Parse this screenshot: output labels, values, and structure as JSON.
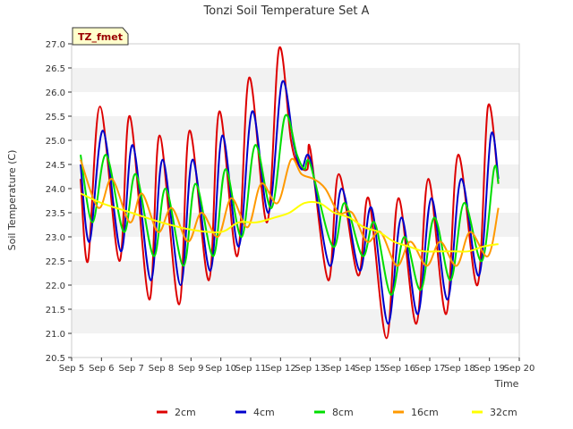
{
  "chart_data": {
    "type": "line",
    "title": "Tonzi Soil Temperature Set A",
    "xlabel": "Time",
    "ylabel": "Soil Temperature (C)",
    "badge": "TZ_fmet",
    "xlim": [
      5,
      20
    ],
    "ylim": [
      20.5,
      27.0
    ],
    "xticks": [
      5,
      6,
      7,
      8,
      9,
      10,
      11,
      12,
      13,
      14,
      15,
      16,
      17,
      18,
      19,
      20
    ],
    "xtick_labels": [
      "Sep 5",
      "Sep 6",
      "Sep 7",
      "Sep 8",
      "Sep 9",
      "Sep 10",
      "Sep 11",
      "Sep 12",
      "Sep 13",
      "Sep 14",
      "Sep 15",
      "Sep 16",
      "Sep 17",
      "Sep 18",
      "Sep 19",
      "Sep 20"
    ],
    "yticks": [
      20.5,
      21.0,
      21.5,
      22.0,
      22.5,
      23.0,
      23.5,
      24.0,
      24.5,
      25.0,
      25.5,
      26.0,
      26.5,
      27.0
    ],
    "ytick_labels": [
      "20.5",
      "21.0",
      "21.5",
      "22.0",
      "22.5",
      "23.0",
      "23.5",
      "24.0",
      "24.5",
      "25.0",
      "25.5",
      "26.0",
      "26.5",
      "27.0"
    ],
    "grid": "horizontal bands",
    "legend_position": "bottom",
    "series": [
      {
        "name": "2cm",
        "color": "#dd0000",
        "points": [
          [
            5.3,
            24.2
          ],
          [
            5.55,
            22.5
          ],
          [
            5.95,
            25.7
          ],
          [
            6.6,
            22.5
          ],
          [
            6.95,
            25.5
          ],
          [
            7.6,
            21.7
          ],
          [
            7.95,
            25.1
          ],
          [
            8.6,
            21.6
          ],
          [
            8.95,
            25.2
          ],
          [
            9.6,
            22.1
          ],
          [
            9.95,
            25.6
          ],
          [
            10.55,
            22.6
          ],
          [
            10.95,
            26.3
          ],
          [
            11.55,
            23.3
          ],
          [
            11.95,
            26.9
          ],
          [
            12.35,
            25.0
          ],
          [
            12.6,
            24.5
          ],
          [
            12.9,
            24.4
          ],
          [
            13.0,
            24.8
          ],
          [
            13.6,
            22.1
          ],
          [
            13.95,
            24.3
          ],
          [
            14.6,
            22.2
          ],
          [
            14.95,
            23.8
          ],
          [
            15.55,
            20.9
          ],
          [
            15.95,
            23.8
          ],
          [
            16.55,
            21.2
          ],
          [
            16.95,
            24.2
          ],
          [
            17.55,
            21.4
          ],
          [
            17.95,
            24.7
          ],
          [
            18.6,
            22.0
          ],
          [
            18.95,
            25.7
          ],
          [
            19.3,
            24.1
          ]
        ]
      },
      {
        "name": "4cm",
        "color": "#0000cc",
        "points": [
          [
            5.3,
            24.5
          ],
          [
            5.6,
            22.9
          ],
          [
            6.05,
            25.2
          ],
          [
            6.65,
            22.7
          ],
          [
            7.05,
            24.9
          ],
          [
            7.65,
            22.1
          ],
          [
            8.05,
            24.6
          ],
          [
            8.65,
            22.0
          ],
          [
            9.05,
            24.6
          ],
          [
            9.65,
            22.3
          ],
          [
            10.05,
            25.1
          ],
          [
            10.6,
            22.8
          ],
          [
            11.05,
            25.6
          ],
          [
            11.6,
            23.5
          ],
          [
            12.05,
            26.2
          ],
          [
            12.45,
            24.9
          ],
          [
            12.7,
            24.4
          ],
          [
            13.0,
            24.6
          ],
          [
            13.65,
            22.4
          ],
          [
            14.05,
            24.0
          ],
          [
            14.65,
            22.3
          ],
          [
            15.05,
            23.6
          ],
          [
            15.6,
            21.2
          ],
          [
            16.05,
            23.4
          ],
          [
            16.6,
            21.4
          ],
          [
            17.05,
            23.8
          ],
          [
            17.6,
            21.7
          ],
          [
            18.05,
            24.2
          ],
          [
            18.65,
            22.2
          ],
          [
            19.05,
            25.1
          ],
          [
            19.3,
            24.2
          ]
        ]
      },
      {
        "name": "8cm",
        "color": "#00dd00",
        "points": [
          [
            5.3,
            24.7
          ],
          [
            5.7,
            23.3
          ],
          [
            6.15,
            24.7
          ],
          [
            6.75,
            23.1
          ],
          [
            7.15,
            24.3
          ],
          [
            7.75,
            22.6
          ],
          [
            8.15,
            24.0
          ],
          [
            8.75,
            22.4
          ],
          [
            9.15,
            24.1
          ],
          [
            9.75,
            22.6
          ],
          [
            10.15,
            24.4
          ],
          [
            10.7,
            23.0
          ],
          [
            11.15,
            24.9
          ],
          [
            11.7,
            23.6
          ],
          [
            12.15,
            25.5
          ],
          [
            12.55,
            24.7
          ],
          [
            12.8,
            24.4
          ],
          [
            13.0,
            24.5
          ],
          [
            13.75,
            22.8
          ],
          [
            14.15,
            23.7
          ],
          [
            14.75,
            22.6
          ],
          [
            15.15,
            23.3
          ],
          [
            15.7,
            21.8
          ],
          [
            16.15,
            23.0
          ],
          [
            16.7,
            21.9
          ],
          [
            17.15,
            23.4
          ],
          [
            17.7,
            22.1
          ],
          [
            18.15,
            23.7
          ],
          [
            18.75,
            22.5
          ],
          [
            19.15,
            24.4
          ],
          [
            19.3,
            24.1
          ]
        ]
      },
      {
        "name": "16cm",
        "color": "#ff9900",
        "points": [
          [
            5.3,
            24.6
          ],
          [
            5.9,
            23.6
          ],
          [
            6.35,
            24.2
          ],
          [
            6.95,
            23.3
          ],
          [
            7.35,
            23.9
          ],
          [
            7.9,
            23.1
          ],
          [
            8.35,
            23.6
          ],
          [
            8.9,
            22.9
          ],
          [
            9.35,
            23.5
          ],
          [
            9.9,
            23.0
          ],
          [
            10.35,
            23.8
          ],
          [
            10.9,
            23.2
          ],
          [
            11.35,
            24.1
          ],
          [
            11.9,
            23.7
          ],
          [
            12.35,
            24.6
          ],
          [
            12.7,
            24.3
          ],
          [
            13.1,
            24.2
          ],
          [
            13.5,
            24.0
          ],
          [
            13.95,
            23.5
          ],
          [
            14.4,
            23.5
          ],
          [
            14.9,
            22.9
          ],
          [
            15.35,
            23.1
          ],
          [
            15.9,
            22.4
          ],
          [
            16.35,
            22.9
          ],
          [
            16.9,
            22.4
          ],
          [
            17.35,
            22.9
          ],
          [
            17.9,
            22.4
          ],
          [
            18.35,
            23.1
          ],
          [
            18.95,
            22.6
          ],
          [
            19.3,
            23.6
          ]
        ]
      },
      {
        "name": "32cm",
        "color": "#ffff00",
        "points": [
          [
            5.3,
            23.9
          ],
          [
            6.0,
            23.7
          ],
          [
            7.0,
            23.5
          ],
          [
            8.0,
            23.3
          ],
          [
            9.0,
            23.15
          ],
          [
            10.0,
            23.1
          ],
          [
            10.6,
            23.3
          ],
          [
            11.2,
            23.3
          ],
          [
            11.8,
            23.4
          ],
          [
            12.3,
            23.5
          ],
          [
            12.8,
            23.7
          ],
          [
            13.3,
            23.7
          ],
          [
            13.8,
            23.5
          ],
          [
            14.3,
            23.4
          ],
          [
            14.8,
            23.2
          ],
          [
            15.3,
            23.1
          ],
          [
            15.8,
            22.9
          ],
          [
            16.3,
            22.8
          ],
          [
            16.8,
            22.7
          ],
          [
            17.3,
            22.7
          ],
          [
            17.8,
            22.7
          ],
          [
            18.3,
            22.7
          ],
          [
            18.8,
            22.8
          ],
          [
            19.3,
            22.85
          ]
        ]
      }
    ]
  }
}
